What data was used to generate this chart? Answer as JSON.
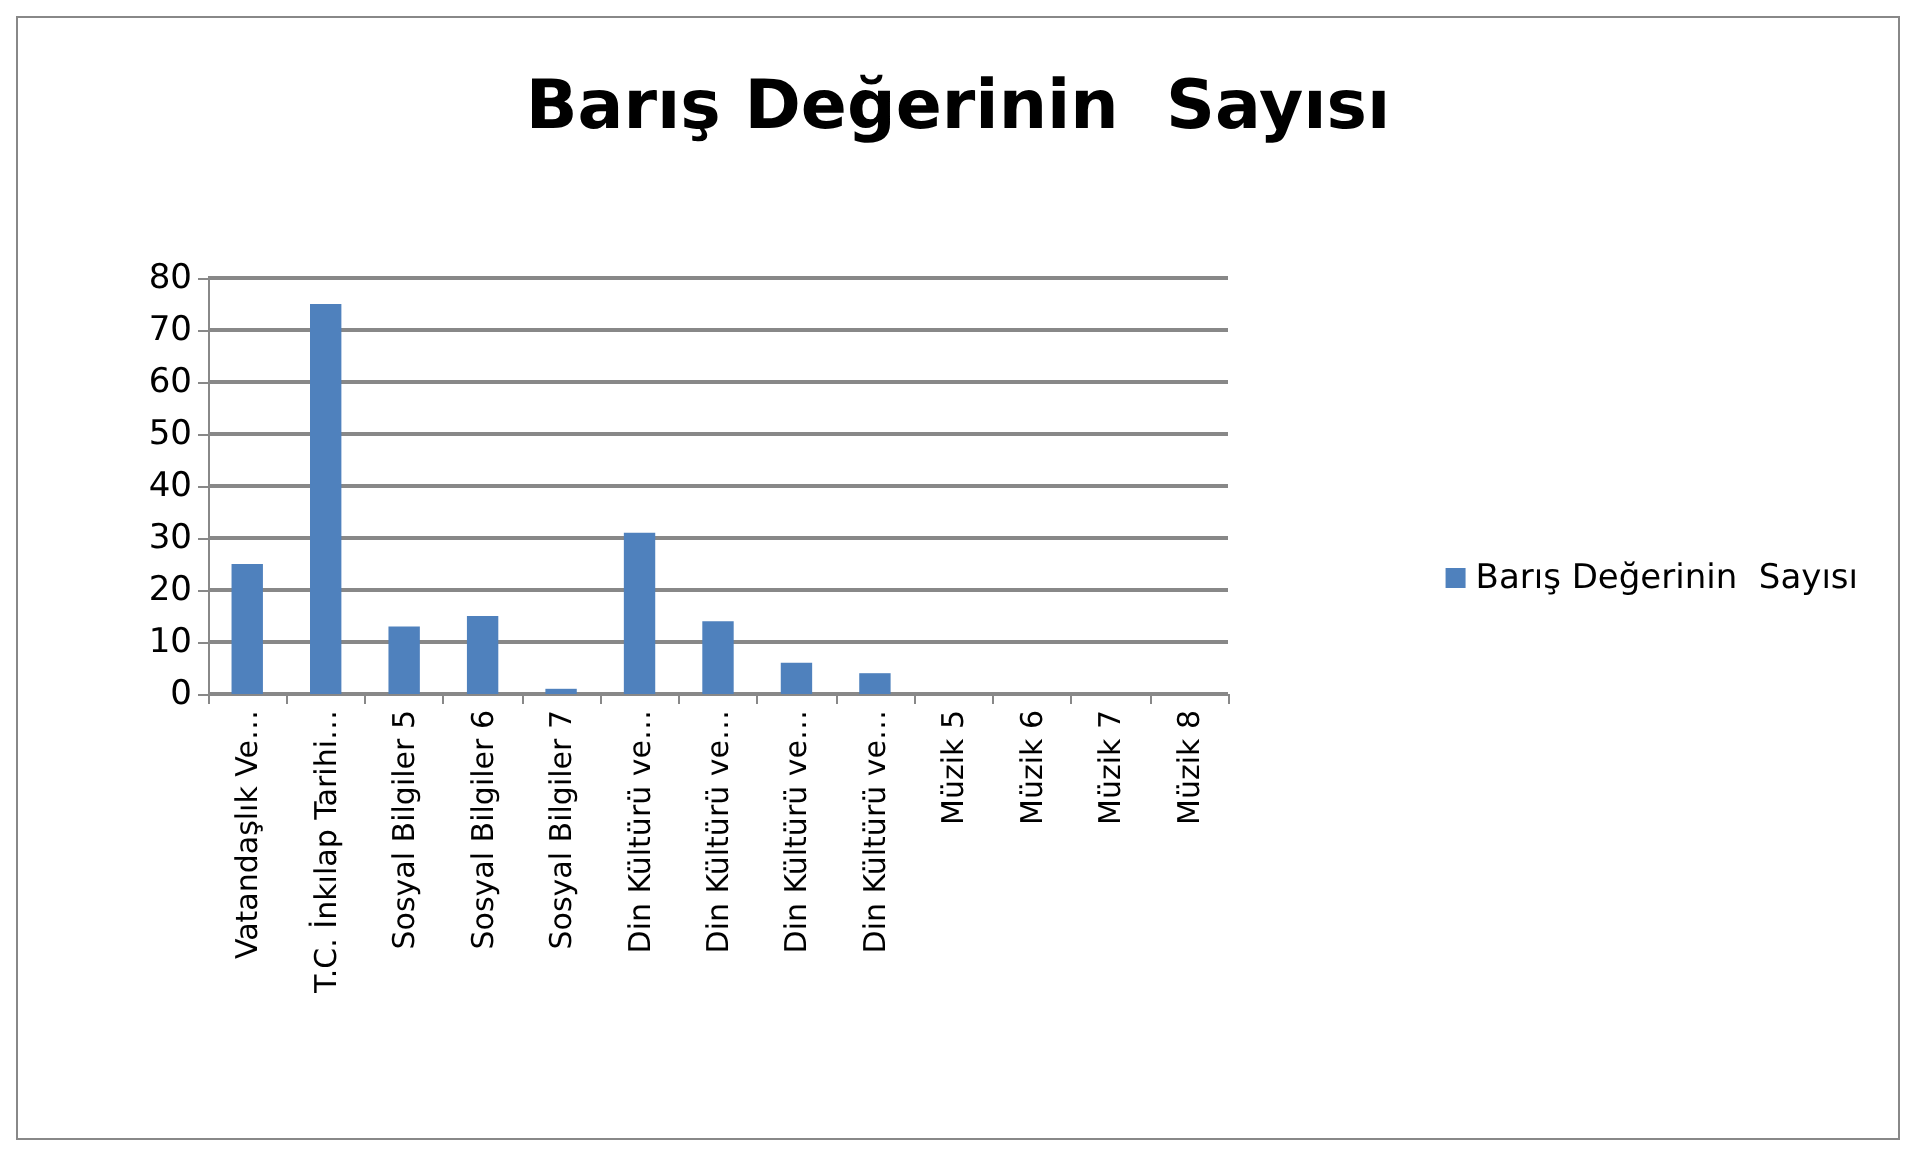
{
  "chart_data": {
    "type": "bar",
    "title": "Barış Değerinin  Sayısı",
    "categories": [
      "Vatandaşlık Ve…",
      "T.C. İnkılap Tarihi…",
      "Sosyal Bilgiler 5",
      "Sosyal Bilgiler 6",
      "Sosyal Bilgiler 7",
      "Din Kültürü ve…",
      "Din Kültürü ve…",
      "Din Kültürü ve…",
      "Din Kültürü ve…",
      "Müzik 5",
      "Müzik 6",
      "Müzik 7",
      "Müzik 8"
    ],
    "series": [
      {
        "name": "Barış Değerinin  Sayısı",
        "color": "#4f81bd",
        "values": [
          25,
          75,
          13,
          15,
          1,
          31,
          14,
          6,
          4,
          0,
          0,
          0,
          0
        ]
      }
    ],
    "ylim": [
      0,
      80
    ],
    "yticks": [
      0,
      10,
      20,
      30,
      40,
      50,
      60,
      70,
      80
    ],
    "grid": "y",
    "legend": "right"
  }
}
